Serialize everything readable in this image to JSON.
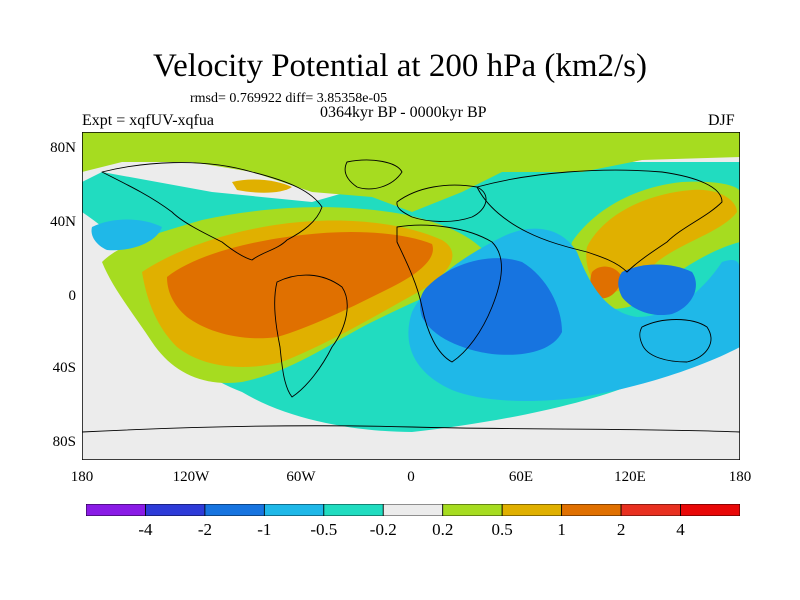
{
  "header": {
    "title": "Velocity Potential at 200 hPa (km2/s)",
    "stats": "rmsd= 0.769922 diff= 3.85358e-05",
    "experiment": "Expt = xqfUV-xqfua",
    "period": "0364kyr BP - 0000kyr BP",
    "season": "DJF"
  },
  "axes": {
    "lat_labels": [
      "80N",
      "40N",
      "0",
      "40S",
      "80S"
    ],
    "lon_labels": [
      "180",
      "120W",
      "60W",
      "0",
      "60E",
      "120E",
      "180"
    ]
  },
  "legend": {
    "labels": [
      "-4",
      "-2",
      "-1",
      "-0.5",
      "-0.2",
      "0.2",
      "0.5",
      "1",
      "2",
      "4"
    ],
    "colors": [
      "#8a1be6",
      "#2d3bd8",
      "#1774e0",
      "#1fb8e8",
      "#21dcc0",
      "#ececec",
      "#a6dc20",
      "#e0b000",
      "#e07000",
      "#e83020",
      "#e80808"
    ]
  },
  "map_colors": {
    "ocean_base": "#21dcc0",
    "neutral": "#ececec",
    "light_pos": "#a6dc20",
    "mid_pos": "#e0b000",
    "strong_pos": "#e07000",
    "light_neg": "#1fb8e8",
    "mid_neg": "#1774e0"
  }
}
